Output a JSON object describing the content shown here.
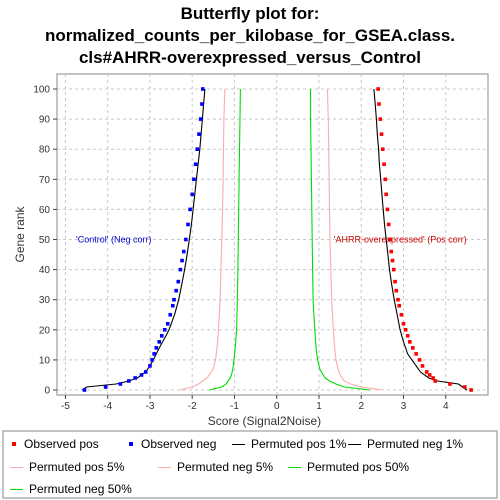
{
  "title_lines": [
    "Butterfly plot for:",
    "normalized_counts_per_kilobase_for_GSEA.class.",
    "cls#AHRR-overexpressed_versus_Control"
  ],
  "chart_data": {
    "type": "line",
    "xlabel": "Score (Signal2Noise)",
    "ylabel": "Gene rank",
    "xlim": [
      -5.2,
      5.0
    ],
    "ylim": [
      0,
      100
    ],
    "x_ticks": [
      -5,
      -4,
      -3,
      -2,
      -1,
      0,
      1,
      2,
      3,
      4
    ],
    "y_ticks": [
      0,
      10,
      20,
      30,
      40,
      50,
      60,
      70,
      80,
      90,
      100
    ],
    "grid": true,
    "annotations": [
      {
        "text": "'Control' (Neg corr)",
        "x": -4.75,
        "y": 50,
        "color": "#0000cc"
      },
      {
        "text": "'AHRR-overexpressed' (Pos corr)",
        "x": 1.35,
        "y": 50,
        "color": "#cc0000"
      }
    ],
    "series": [
      {
        "name": "Observed pos",
        "color": "#ff0000",
        "style": "points",
        "rank": [
          0,
          1,
          2,
          3,
          4,
          5,
          6,
          8,
          10,
          12,
          14,
          16,
          18,
          20,
          22,
          25,
          28,
          30,
          33,
          36,
          40,
          43,
          46,
          50,
          55,
          60,
          65,
          70,
          75,
          80,
          85,
          90,
          95,
          100
        ],
        "score": [
          4.6,
          4.45,
          4.1,
          3.75,
          3.7,
          3.62,
          3.55,
          3.45,
          3.38,
          3.3,
          3.22,
          3.15,
          3.1,
          3.05,
          3.0,
          2.95,
          2.9,
          2.87,
          2.83,
          2.8,
          2.77,
          2.74,
          2.71,
          2.68,
          2.65,
          2.62,
          2.59,
          2.57,
          2.54,
          2.51,
          2.48,
          2.45,
          2.42,
          2.4
        ]
      },
      {
        "name": "Observed neg",
        "color": "#0000ff",
        "style": "points",
        "rank": [
          0,
          1,
          2,
          3,
          4,
          5,
          6,
          8,
          10,
          12,
          14,
          16,
          18,
          20,
          22,
          25,
          28,
          30,
          33,
          36,
          40,
          43,
          46,
          50,
          55,
          60,
          65,
          70,
          75,
          80,
          85,
          90,
          95,
          100
        ],
        "score": [
          -4.55,
          -4.05,
          -3.7,
          -3.5,
          -3.35,
          -3.2,
          -3.1,
          -3.0,
          -2.95,
          -2.9,
          -2.85,
          -2.78,
          -2.72,
          -2.65,
          -2.58,
          -2.52,
          -2.46,
          -2.43,
          -2.38,
          -2.33,
          -2.28,
          -2.24,
          -2.2,
          -2.15,
          -2.1,
          -2.05,
          -2.0,
          -1.96,
          -1.92,
          -1.88,
          -1.84,
          -1.8,
          -1.77,
          -1.75
        ]
      },
      {
        "name": "Permuted pos 1%",
        "color": "#000000",
        "style": "line",
        "rank": [
          0,
          1,
          2,
          3,
          4,
          5,
          6,
          8,
          10,
          12,
          14,
          16,
          18,
          20,
          25,
          30,
          35,
          40,
          45,
          50,
          55,
          60,
          65,
          70,
          75,
          80,
          85,
          90,
          95,
          100
        ],
        "score": [
          4.5,
          4.4,
          4.3,
          3.8,
          3.6,
          3.5,
          3.4,
          3.3,
          3.2,
          3.1,
          3.05,
          3.0,
          2.96,
          2.92,
          2.85,
          2.78,
          2.72,
          2.67,
          2.63,
          2.59,
          2.55,
          2.52,
          2.49,
          2.46,
          2.43,
          2.41,
          2.38,
          2.36,
          2.33,
          2.3
        ]
      },
      {
        "name": "Permuted neg 1%",
        "color": "#000000",
        "style": "line",
        "rank": [
          0,
          1,
          2,
          3,
          4,
          5,
          6,
          8,
          10,
          12,
          14,
          16,
          18,
          20,
          25,
          30,
          35,
          40,
          45,
          50,
          55,
          60,
          65,
          70,
          75,
          80,
          85,
          90,
          95,
          100
        ],
        "score": [
          -4.6,
          -4.5,
          -3.8,
          -3.5,
          -3.3,
          -3.2,
          -3.1,
          -3.0,
          -2.92,
          -2.85,
          -2.78,
          -2.7,
          -2.62,
          -2.55,
          -2.42,
          -2.32,
          -2.25,
          -2.18,
          -2.12,
          -2.07,
          -2.02,
          -1.98,
          -1.94,
          -1.9,
          -1.86,
          -1.82,
          -1.79,
          -1.76,
          -1.73,
          -1.7
        ]
      },
      {
        "name": "Permuted pos 5%",
        "color": "#ffaaaa",
        "style": "line",
        "rank": [
          0,
          1,
          2,
          3,
          4,
          5,
          7,
          10,
          13,
          16,
          20,
          25,
          30,
          40,
          50,
          60,
          70,
          80,
          90,
          100
        ],
        "score": [
          2.5,
          2.0,
          1.75,
          1.6,
          1.55,
          1.5,
          1.45,
          1.4,
          1.38,
          1.36,
          1.34,
          1.32,
          1.3,
          1.28,
          1.26,
          1.25,
          1.24,
          1.23,
          1.22,
          1.2
        ]
      },
      {
        "name": "Permuted neg 5%",
        "color": "#ffaaaa",
        "style": "line",
        "rank": [
          0,
          1,
          2,
          3,
          4,
          5,
          7,
          10,
          13,
          16,
          20,
          25,
          30,
          40,
          50,
          60,
          70,
          80,
          90,
          100
        ],
        "score": [
          -2.3,
          -2.0,
          -1.85,
          -1.75,
          -1.65,
          -1.6,
          -1.5,
          -1.45,
          -1.42,
          -1.4,
          -1.38,
          -1.36,
          -1.34,
          -1.32,
          -1.3,
          -1.28,
          -1.27,
          -1.26,
          -1.25,
          -1.23
        ]
      },
      {
        "name": "Permuted pos 50%",
        "color": "#00dd00",
        "style": "line",
        "rank": [
          0,
          1,
          2,
          3,
          4,
          5,
          7,
          10,
          13,
          16,
          20,
          25,
          30,
          40,
          50,
          60,
          70,
          80,
          90,
          100
        ],
        "score": [
          2.2,
          1.6,
          1.4,
          1.25,
          1.15,
          1.1,
          1.02,
          0.97,
          0.94,
          0.92,
          0.9,
          0.88,
          0.86,
          0.85,
          0.84,
          0.83,
          0.82,
          0.81,
          0.8,
          0.8
        ]
      },
      {
        "name": "Permuted neg 50%",
        "color": "#00dd00",
        "style": "line",
        "rank": [
          0,
          1,
          2,
          3,
          4,
          5,
          7,
          10,
          13,
          16,
          20,
          25,
          30,
          40,
          50,
          60,
          70,
          80,
          90,
          100
        ],
        "score": [
          -1.6,
          -1.3,
          -1.2,
          -1.15,
          -1.1,
          -1.07,
          -1.04,
          -1.01,
          -0.99,
          -0.97,
          -0.95,
          -0.94,
          -0.93,
          -0.92,
          -0.91,
          -0.9,
          -0.89,
          -0.88,
          -0.87,
          -0.86
        ]
      }
    ]
  }
}
